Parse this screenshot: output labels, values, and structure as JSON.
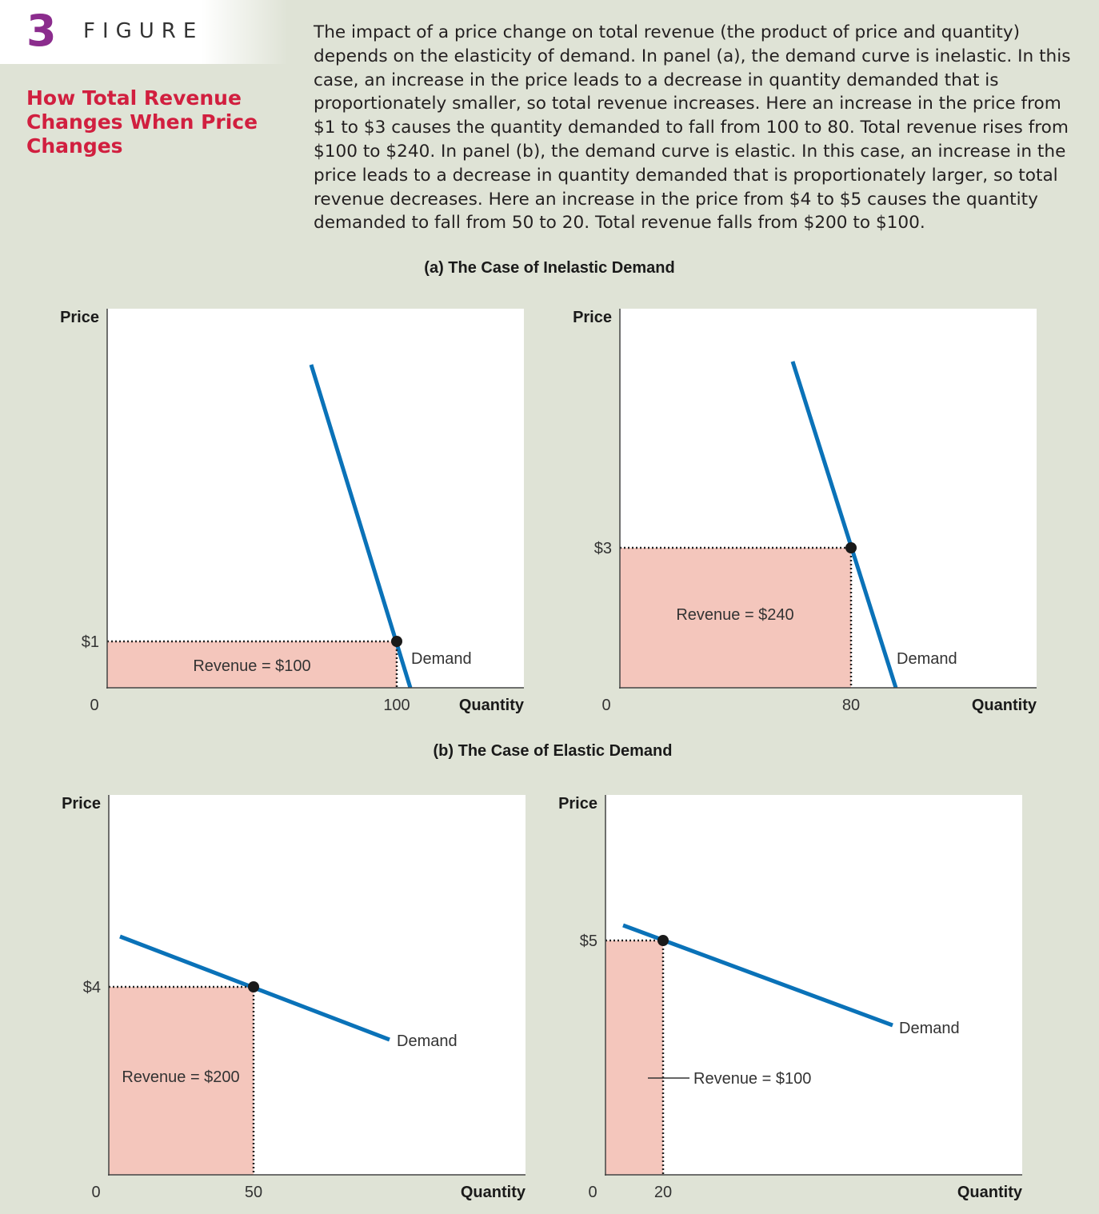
{
  "figure": {
    "number": "3",
    "label": "FIGURE",
    "title": "How Total Revenue Changes When Price Changes",
    "caption": "The impact of a price change on total revenue (the product of price and quantity) depends on the elasticity of demand. In panel (a), the demand curve is inelastic. In this case, an increase in the price leads to a decrease in quantity demanded that is proportionately smaller, so total revenue increases. Here an increase in the price from $1 to $3 causes the quantity demanded to fall from 100 to 80. Total revenue rises from $100 to $240. In panel (b), the demand curve is elastic. In this case, an increase in the price leads to a decrease in quantity demanded that is proportionately larger, so total revenue decreases. Here an increase in the price from $4 to $5 causes the quantity demanded to fall from 50 to 20. Total revenue falls from $200 to $100."
  },
  "panels": {
    "a_label": "(a) The Case of Inelastic Demand",
    "b_label": "(b) The Case of Elastic Demand"
  },
  "colors": {
    "curve": "#0a72b8",
    "revenue_fill": "#f4c6bc",
    "point": "#1a1a1a"
  },
  "chart_data": [
    {
      "type": "line",
      "panel": "a",
      "ylabel": "Price",
      "xlabel": "Quantity",
      "origin_label": "0",
      "series_label": "Demand",
      "point": {
        "x": 100,
        "y": 1,
        "x_label": "100",
        "y_label": "$1"
      },
      "revenue_label": "Revenue = $100",
      "revenue": 100
    },
    {
      "type": "line",
      "panel": "a",
      "ylabel": "Price",
      "xlabel": "Quantity",
      "origin_label": "0",
      "series_label": "Demand",
      "point": {
        "x": 80,
        "y": 3,
        "x_label": "80",
        "y_label": "$3"
      },
      "revenue_label": "Revenue = $240",
      "revenue": 240
    },
    {
      "type": "line",
      "panel": "b",
      "ylabel": "Price",
      "xlabel": "Quantity",
      "origin_label": "0",
      "series_label": "Demand",
      "point": {
        "x": 50,
        "y": 4,
        "x_label": "50",
        "y_label": "$4"
      },
      "revenue_label": "Revenue = $200",
      "revenue": 200
    },
    {
      "type": "line",
      "panel": "b",
      "ylabel": "Price",
      "xlabel": "Quantity",
      "origin_label": "0",
      "series_label": "Demand",
      "point": {
        "x": 20,
        "y": 5,
        "x_label": "20",
        "y_label": "$5"
      },
      "revenue_label": "Revenue = $100",
      "revenue": 100
    }
  ]
}
